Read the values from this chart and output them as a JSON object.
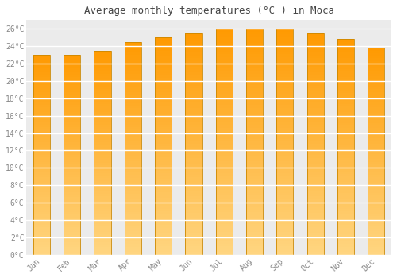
{
  "title": "Average monthly temperatures (°C ) in Moca",
  "months": [
    "Jan",
    "Feb",
    "Mar",
    "Apr",
    "May",
    "Jun",
    "Jul",
    "Aug",
    "Sep",
    "Oct",
    "Nov",
    "Dec"
  ],
  "temperatures": [
    23.0,
    23.0,
    23.5,
    24.5,
    25.0,
    25.5,
    26.0,
    26.0,
    26.0,
    25.5,
    24.8,
    23.8
  ],
  "ylim": [
    0,
    27
  ],
  "yticks": [
    0,
    2,
    4,
    6,
    8,
    10,
    12,
    14,
    16,
    18,
    20,
    22,
    24,
    26
  ],
  "bar_color_top": "#FFA500",
  "bar_color_bottom": "#FFD580",
  "bar_edge_color": "#CC8800",
  "figure_bg": "#ffffff",
  "axes_bg": "#ebebeb",
  "grid_color": "#ffffff",
  "title_fontsize": 9,
  "tick_fontsize": 7,
  "tick_color": "#888888",
  "title_color": "#444444",
  "font_family": "monospace",
  "bar_width": 0.55
}
